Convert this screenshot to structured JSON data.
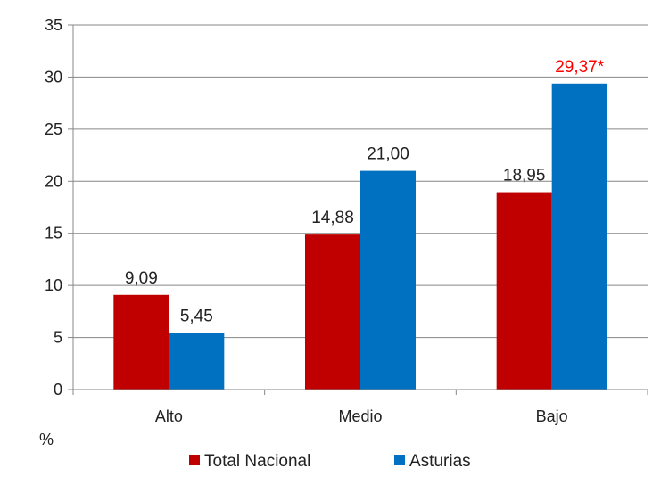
{
  "chart_data": {
    "type": "bar",
    "title": "",
    "xlabel": "",
    "ylabel": "%",
    "ylim": [
      0,
      35
    ],
    "yticks": [
      0,
      5,
      10,
      15,
      20,
      25,
      30,
      35
    ],
    "grid": true,
    "legend_position": "bottom",
    "categories": [
      "Alto",
      "Medio",
      "Bajo"
    ],
    "series": [
      {
        "name": "Total Nacional",
        "color": "#c00000",
        "values": [
          9.09,
          14.88,
          18.95
        ],
        "labels": [
          "9,09",
          "14,88",
          "18,95"
        ],
        "label_colors": [
          "#222222",
          "#222222",
          "#222222"
        ]
      },
      {
        "name": "Asturias",
        "color": "#0070c0",
        "values": [
          5.45,
          21.0,
          29.37
        ],
        "labels": [
          "5,45",
          "21,00",
          "29,37*"
        ],
        "label_colors": [
          "#222222",
          "#222222",
          "#ff0000"
        ]
      }
    ]
  }
}
